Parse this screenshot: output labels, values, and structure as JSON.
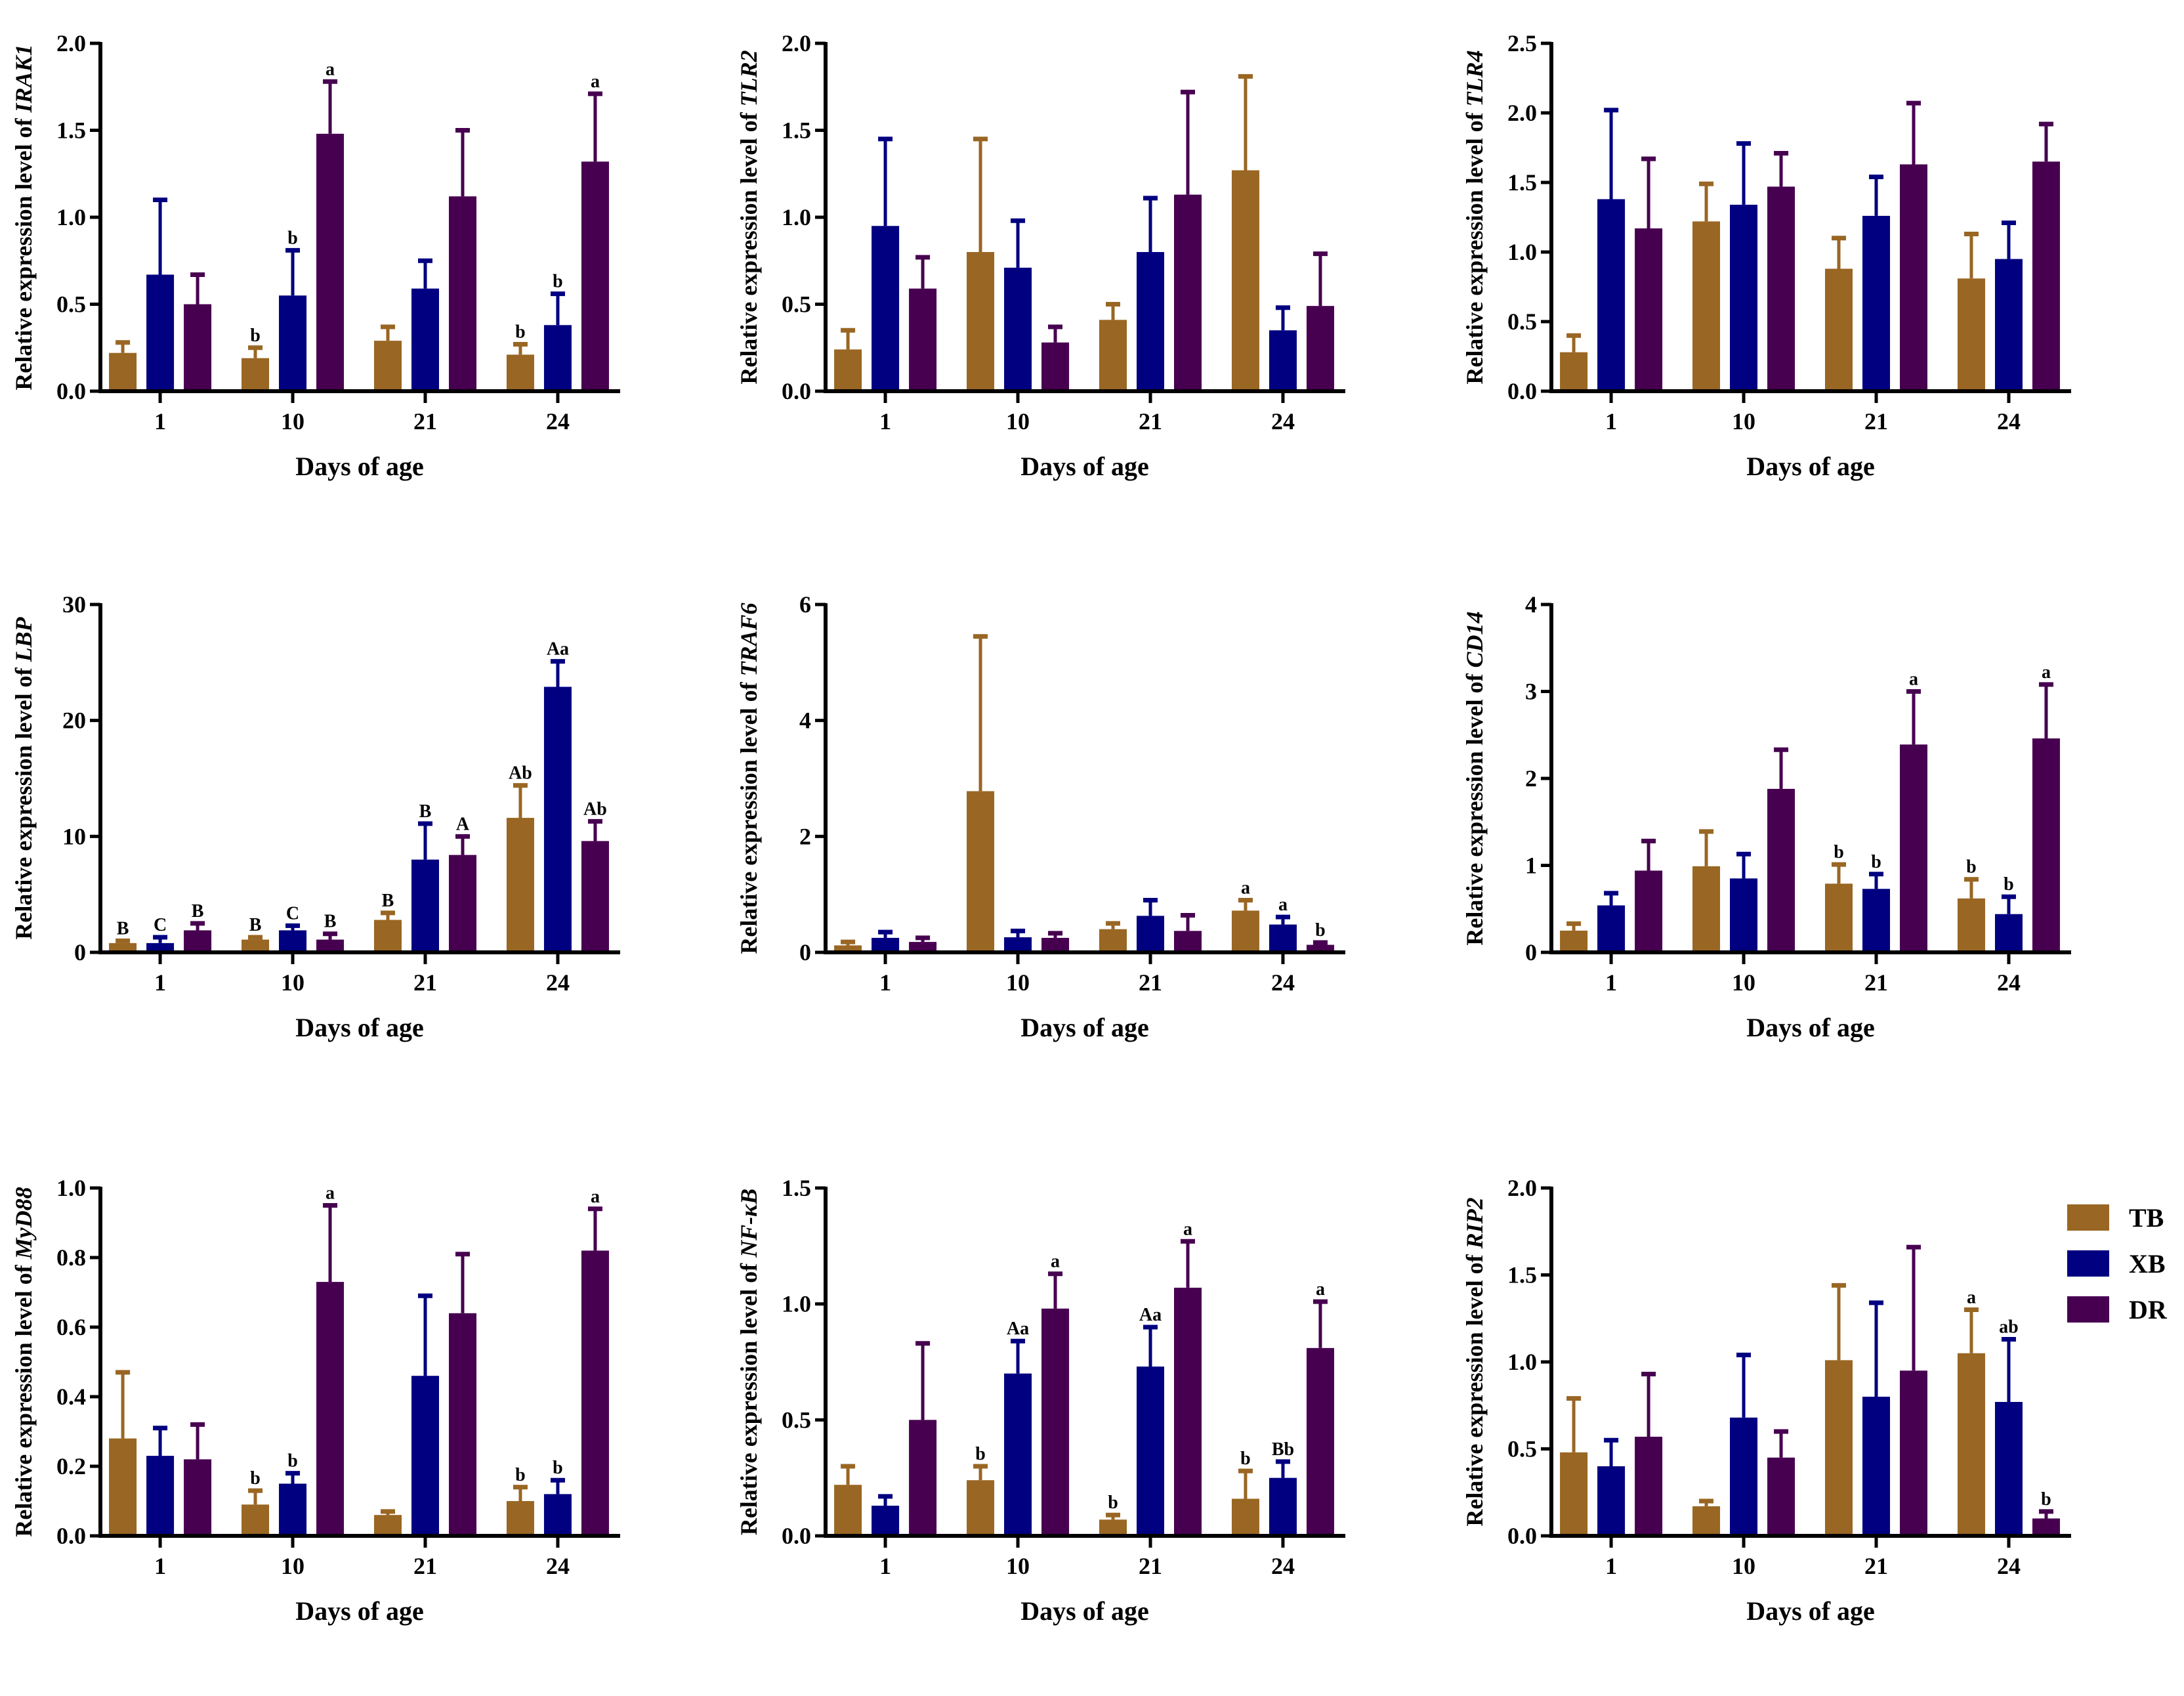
{
  "colors": {
    "TB": "#996623",
    "XB": "#000080",
    "DR": "#470050"
  },
  "legend": [
    {
      "name": "TB",
      "color": "#996623"
    },
    {
      "name": "XB",
      "color": "#000080"
    },
    {
      "name": "DR",
      "color": "#470050"
    }
  ],
  "chart_data": [
    {
      "type": "bar",
      "gene": "IRAK1",
      "ylabel_prefix": "Relative expression level of ",
      "xlabel": "Days of age",
      "categories": [
        "1",
        "10",
        "21",
        "24"
      ],
      "ylim": [
        0,
        2.0
      ],
      "yticks": [
        "0.0",
        "0.5",
        "1.0",
        "1.5",
        "2.0"
      ],
      "series": [
        {
          "name": "TB",
          "values": [
            0.22,
            0.19,
            0.29,
            0.21
          ],
          "err_top": [
            0.28,
            0.25,
            0.37,
            0.27
          ],
          "labels": [
            "",
            "b",
            "",
            "b"
          ]
        },
        {
          "name": "XB",
          "values": [
            0.67,
            0.55,
            0.59,
            0.38
          ],
          "err_top": [
            1.1,
            0.81,
            0.75,
            0.56
          ],
          "labels": [
            "",
            "b",
            "",
            "b"
          ]
        },
        {
          "name": "DR",
          "values": [
            0.5,
            1.48,
            1.12,
            1.32
          ],
          "err_top": [
            0.67,
            1.78,
            1.5,
            1.71
          ],
          "labels": [
            "",
            "a",
            "",
            "a"
          ]
        }
      ]
    },
    {
      "type": "bar",
      "gene": "TLR2",
      "ylabel_prefix": "Relative expression level of ",
      "xlabel": "Days of age",
      "categories": [
        "1",
        "10",
        "21",
        "24"
      ],
      "ylim": [
        0,
        2.0
      ],
      "yticks": [
        "0.0",
        "0.5",
        "1.0",
        "1.5",
        "2.0"
      ],
      "series": [
        {
          "name": "TB",
          "values": [
            0.24,
            0.8,
            0.41,
            1.27
          ],
          "err_top": [
            0.35,
            1.45,
            0.5,
            1.81
          ],
          "labels": [
            "",
            "",
            "",
            ""
          ]
        },
        {
          "name": "XB",
          "values": [
            0.95,
            0.71,
            0.8,
            0.35
          ],
          "err_top": [
            1.45,
            0.98,
            1.11,
            0.48
          ],
          "labels": [
            "",
            "",
            "",
            ""
          ]
        },
        {
          "name": "DR",
          "values": [
            0.59,
            0.28,
            1.13,
            0.49
          ],
          "err_top": [
            0.77,
            0.37,
            1.72,
            0.79
          ],
          "labels": [
            "",
            "",
            "",
            ""
          ]
        }
      ]
    },
    {
      "type": "bar",
      "gene": "TLR4",
      "ylabel_prefix": "Relative expression level of ",
      "xlabel": "Days of age",
      "categories": [
        "1",
        "10",
        "21",
        "24"
      ],
      "ylim": [
        0,
        2.5
      ],
      "yticks": [
        "0.0",
        "0.5",
        "1.0",
        "1.5",
        "2.0",
        "2.5"
      ],
      "series": [
        {
          "name": "TB",
          "values": [
            0.28,
            1.22,
            0.88,
            0.81
          ],
          "err_top": [
            0.4,
            1.49,
            1.1,
            1.13
          ],
          "labels": [
            "",
            "",
            "",
            ""
          ]
        },
        {
          "name": "XB",
          "values": [
            1.38,
            1.34,
            1.26,
            0.95
          ],
          "err_top": [
            2.02,
            1.78,
            1.54,
            1.21
          ],
          "labels": [
            "",
            "",
            "",
            ""
          ]
        },
        {
          "name": "DR",
          "values": [
            1.17,
            1.47,
            1.63,
            1.65
          ],
          "err_top": [
            1.67,
            1.71,
            2.07,
            1.92
          ],
          "labels": [
            "",
            "",
            "",
            ""
          ]
        }
      ]
    },
    {
      "type": "bar",
      "gene": "LBP",
      "ylabel_prefix": "Relative expression level of ",
      "xlabel": "Days of age",
      "categories": [
        "1",
        "10",
        "21",
        "24"
      ],
      "ylim": [
        0,
        30
      ],
      "yticks": [
        "0",
        "10",
        "20",
        "30"
      ],
      "series": [
        {
          "name": "TB",
          "values": [
            0.8,
            1.1,
            2.8,
            11.6
          ],
          "err_top": [
            1.0,
            1.3,
            3.4,
            14.4
          ],
          "labels": [
            "B",
            "B",
            "B",
            "Ab"
          ]
        },
        {
          "name": "XB",
          "values": [
            0.8,
            1.9,
            8.0,
            22.9
          ],
          "err_top": [
            1.3,
            2.3,
            11.1,
            25.1
          ],
          "labels": [
            "C",
            "C",
            "B",
            "Aa"
          ]
        },
        {
          "name": "DR",
          "values": [
            1.9,
            1.1,
            8.4,
            9.6
          ],
          "err_top": [
            2.5,
            1.6,
            10.0,
            11.3
          ],
          "labels": [
            "B",
            "B",
            "A",
            "Ab"
          ]
        }
      ]
    },
    {
      "type": "bar",
      "gene": "TRAF6",
      "ylabel_prefix": "Relative expression level of ",
      "xlabel": "Days of age",
      "categories": [
        "1",
        "10",
        "21",
        "24"
      ],
      "ylim": [
        0,
        6
      ],
      "yticks": [
        "0",
        "2",
        "4",
        "6"
      ],
      "series": [
        {
          "name": "TB",
          "values": [
            0.12,
            2.78,
            0.4,
            0.72
          ],
          "err_top": [
            0.18,
            5.45,
            0.5,
            0.9
          ],
          "labels": [
            "",
            "",
            "",
            "a"
          ]
        },
        {
          "name": "XB",
          "values": [
            0.25,
            0.26,
            0.63,
            0.48
          ],
          "err_top": [
            0.35,
            0.37,
            0.9,
            0.61
          ],
          "labels": [
            "",
            "",
            "",
            "a"
          ]
        },
        {
          "name": "DR",
          "values": [
            0.18,
            0.25,
            0.37,
            0.13
          ],
          "err_top": [
            0.25,
            0.33,
            0.64,
            0.17
          ],
          "labels": [
            "",
            "",
            "",
            "b"
          ]
        }
      ]
    },
    {
      "type": "bar",
      "gene": "CD14",
      "ylabel_prefix": "Relative expression level of ",
      "xlabel": "Days of age",
      "categories": [
        "1",
        "10",
        "21",
        "24"
      ],
      "ylim": [
        0,
        4
      ],
      "yticks": [
        "0",
        "1",
        "2",
        "3",
        "4"
      ],
      "series": [
        {
          "name": "TB",
          "values": [
            0.25,
            0.99,
            0.79,
            0.62
          ],
          "err_top": [
            0.33,
            1.39,
            1.01,
            0.84
          ],
          "labels": [
            "",
            "",
            "b",
            "b"
          ]
        },
        {
          "name": "XB",
          "values": [
            0.54,
            0.85,
            0.73,
            0.44
          ],
          "err_top": [
            0.68,
            1.13,
            0.9,
            0.64
          ],
          "labels": [
            "",
            "",
            "b",
            "b"
          ]
        },
        {
          "name": "DR",
          "values": [
            0.94,
            1.88,
            2.39,
            2.46
          ],
          "err_top": [
            1.28,
            2.33,
            3.0,
            3.08
          ],
          "labels": [
            "",
            "",
            "a",
            "a"
          ]
        }
      ]
    },
    {
      "type": "bar",
      "gene": "MyD88",
      "ylabel_prefix": "Relative expression level of ",
      "xlabel": "Days of age",
      "categories": [
        "1",
        "10",
        "21",
        "24"
      ],
      "ylim": [
        0,
        1.0
      ],
      "yticks": [
        "0.0",
        "0.2",
        "0.4",
        "0.6",
        "0.8",
        "1.0"
      ],
      "series": [
        {
          "name": "TB",
          "values": [
            0.28,
            0.09,
            0.06,
            0.1
          ],
          "err_top": [
            0.47,
            0.13,
            0.07,
            0.14
          ],
          "labels": [
            "",
            "b",
            "",
            "b"
          ]
        },
        {
          "name": "XB",
          "values": [
            0.23,
            0.15,
            0.46,
            0.12
          ],
          "err_top": [
            0.31,
            0.18,
            0.69,
            0.16
          ],
          "labels": [
            "",
            "b",
            "",
            "b"
          ]
        },
        {
          "name": "DR",
          "values": [
            0.22,
            0.73,
            0.64,
            0.82
          ],
          "err_top": [
            0.32,
            0.95,
            0.81,
            0.94
          ],
          "labels": [
            "",
            "a",
            "",
            "a"
          ]
        }
      ]
    },
    {
      "type": "bar",
      "gene": "NF-κB",
      "ylabel_prefix": "Relative expression level of ",
      "xlabel": "Days of age",
      "categories": [
        "1",
        "10",
        "21",
        "24"
      ],
      "ylim": [
        0,
        1.5
      ],
      "yticks": [
        "0.0",
        "0.5",
        "1.0",
        "1.5"
      ],
      "series": [
        {
          "name": "TB",
          "values": [
            0.22,
            0.24,
            0.07,
            0.16
          ],
          "err_top": [
            0.3,
            0.3,
            0.09,
            0.28
          ],
          "labels": [
            "",
            "b",
            "b",
            "b"
          ]
        },
        {
          "name": "XB",
          "values": [
            0.13,
            0.7,
            0.73,
            0.25
          ],
          "err_top": [
            0.17,
            0.84,
            0.9,
            0.32
          ],
          "labels": [
            "",
            "Aa",
            "Aa",
            "Bb"
          ]
        },
        {
          "name": "DR",
          "values": [
            0.5,
            0.98,
            1.07,
            0.81
          ],
          "err_top": [
            0.83,
            1.13,
            1.27,
            1.01
          ],
          "labels": [
            "",
            "a",
            "a",
            "a"
          ]
        }
      ]
    },
    {
      "type": "bar",
      "gene": "RIP2",
      "ylabel_prefix": "Relative expression level of ",
      "xlabel": "Days of age",
      "categories": [
        "1",
        "10",
        "21",
        "24"
      ],
      "ylim": [
        0,
        2.0
      ],
      "yticks": [
        "0.0",
        "0.5",
        "1.0",
        "1.5",
        "2.0"
      ],
      "series": [
        {
          "name": "TB",
          "values": [
            0.48,
            0.17,
            1.01,
            1.05
          ],
          "err_top": [
            0.79,
            0.2,
            1.44,
            1.3
          ],
          "labels": [
            "",
            "",
            "",
            "a"
          ]
        },
        {
          "name": "XB",
          "values": [
            0.4,
            0.68,
            0.8,
            0.77
          ],
          "err_top": [
            0.55,
            1.04,
            1.34,
            1.13
          ],
          "labels": [
            "",
            "",
            "",
            "ab"
          ]
        },
        {
          "name": "DR",
          "values": [
            0.57,
            0.45,
            0.95,
            0.1
          ],
          "err_top": [
            0.93,
            0.6,
            1.66,
            0.14
          ],
          "labels": [
            "",
            "",
            "",
            "b"
          ]
        }
      ]
    }
  ]
}
